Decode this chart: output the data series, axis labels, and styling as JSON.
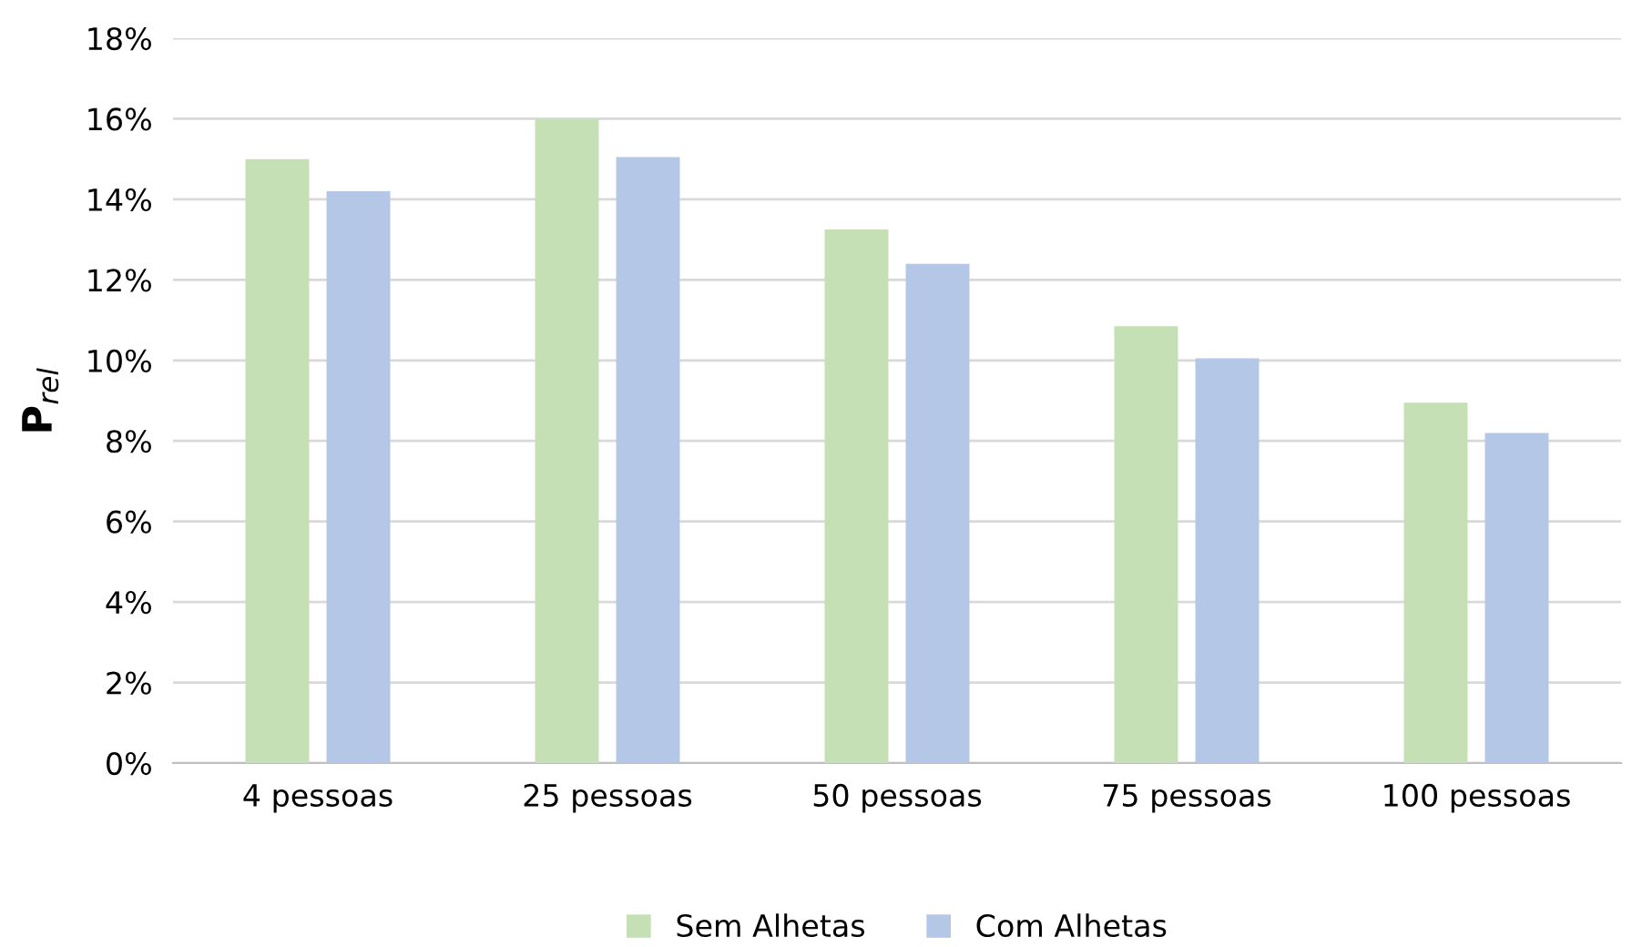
{
  "chart_data": {
    "type": "bar",
    "ylabel": "P$_{rel}$",
    "categories": [
      "4 pessoas",
      "25 pessoas",
      "50 pessoas",
      "75 pessoas",
      "100 pessoas"
    ],
    "series": [
      {
        "name": "Sem Alhetas",
        "color": "#c5e0b4",
        "values": [
          15.0,
          16.0,
          13.25,
          10.85,
          8.95
        ]
      },
      {
        "name": "Com Alhetas",
        "color": "#b4c7e7",
        "values": [
          14.2,
          15.05,
          12.4,
          10.05,
          8.2
        ]
      }
    ],
    "ylim": [
      0,
      18
    ],
    "yticks": [
      {
        "value": 0,
        "label": "0%"
      },
      {
        "value": 2,
        "label": "2%"
      },
      {
        "value": 4,
        "label": "4%"
      },
      {
        "value": 6,
        "label": "6%"
      },
      {
        "value": 8,
        "label": "8%"
      },
      {
        "value": 10,
        "label": "10%"
      },
      {
        "value": 12,
        "label": "12%"
      },
      {
        "value": 14,
        "label": "14%"
      },
      {
        "value": 16,
        "label": "16%"
      },
      {
        "value": 18,
        "label": "18%"
      }
    ],
    "grid": "y",
    "legend": "bottom"
  }
}
